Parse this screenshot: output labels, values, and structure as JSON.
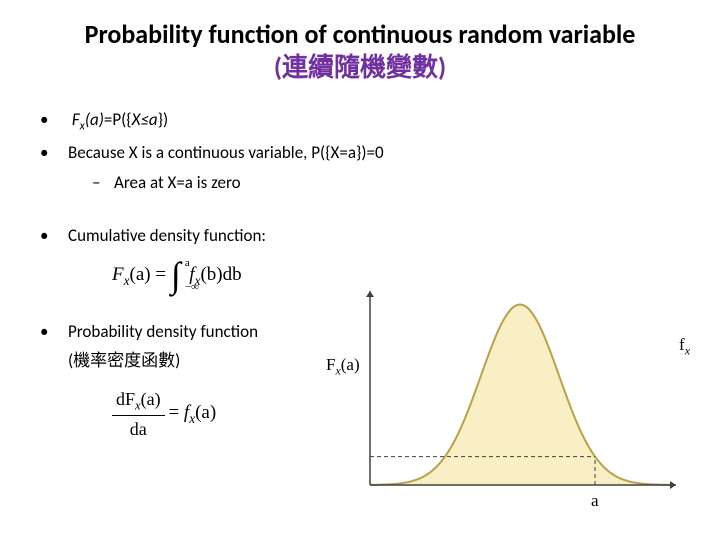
{
  "title": {
    "line1": "Probability function of continuous random variable",
    "line2": "(連續隨機變數)",
    "line1_color": "#000000",
    "line2_color": "#7030a0",
    "fontsize": 26
  },
  "bullets": [
    {
      "type": "dot",
      "html": "Fx(a)=P({X≤a})",
      "italic_prefix": true
    },
    {
      "type": "dot",
      "text": "Because X is a continuous variable, P({X=a})=0"
    },
    {
      "type": "dash",
      "text": "Area at X=a is zero"
    },
    {
      "type": "spacer"
    },
    {
      "type": "dot",
      "text": "Cumulative density function:"
    },
    {
      "type": "formula1"
    },
    {
      "type": "spacer"
    },
    {
      "type": "dot",
      "text": "Probability density function"
    },
    {
      "type": "plain",
      "text": "(機率密度函數)"
    },
    {
      "type": "formula2"
    }
  ],
  "formula1": {
    "lhs": "F",
    "lhs_sub": "x",
    "lhs_arg": "(a)",
    "int_upper": "a",
    "int_lower": "−∞",
    "integrand": "f",
    "integrand_sub": "x",
    "integrand_arg": "(b)",
    "diff": "db"
  },
  "formula2": {
    "num": "dF",
    "num_sub": "x",
    "num_arg": "(a)",
    "den": "da",
    "rhs": "f",
    "rhs_sub": "x",
    "rhs_arg": "(a)"
  },
  "chart": {
    "type": "bell_curve",
    "fill_color": "#f8efc5",
    "stroke_color": "#b7a24a",
    "axis_color": "#404040",
    "background_color": "#ffffff",
    "stroke_width": 2,
    "y_label": "F",
    "y_label_sub": "x",
    "y_label_arg": "(a)",
    "curve_label": "f",
    "curve_label_sub": "x",
    "x_marker_label": "a",
    "x_marker_pos": 0.75,
    "bell_mu": 0.5,
    "bell_sigma": 0.13,
    "x_range": [
      0,
      1
    ],
    "axis_fontsize": 17
  }
}
